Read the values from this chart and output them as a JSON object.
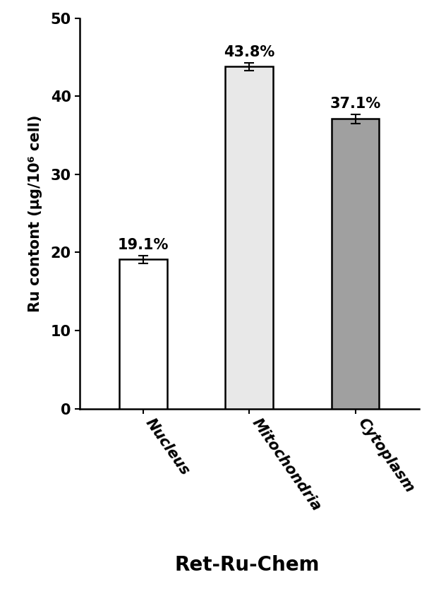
{
  "categories": [
    "Nucleus",
    "Mitochondria",
    "Cytoplasm"
  ],
  "values": [
    19.1,
    43.8,
    37.1
  ],
  "errors": [
    0.5,
    0.5,
    0.6
  ],
  "labels": [
    "19.1%",
    "43.8%",
    "37.1%"
  ],
  "bar_colors": [
    "#ffffff",
    "#e8e8e8",
    "#a0a0a0"
  ],
  "bar_edgecolor": "#000000",
  "bar_linewidth": 1.8,
  "ylabel": "Ru contont (μg/10⁶ cell)",
  "xlabel": "Ret-Ru-Chem",
  "ylim": [
    0,
    50
  ],
  "yticks": [
    0,
    10,
    20,
    30,
    40,
    50
  ],
  "label_fontsize": 15,
  "tick_fontsize": 15,
  "xlabel_fontsize": 20,
  "annotation_fontsize": 15,
  "bar_width": 0.45,
  "figsize": [
    6.25,
    8.51
  ],
  "dpi": 100,
  "background_color": "#ffffff"
}
